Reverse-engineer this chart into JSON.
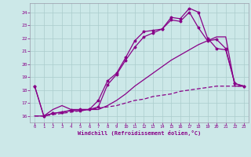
{
  "xlabel": "Windchill (Refroidissement éolien,°C)",
  "background_color": "#cce8e8",
  "grid_color": "#aacccc",
  "line_color": "#880088",
  "xlim": [
    -0.5,
    23.5
  ],
  "ylim": [
    15.5,
    24.7
  ],
  "yticks": [
    16,
    17,
    18,
    19,
    20,
    21,
    22,
    23,
    24
  ],
  "xticks": [
    0,
    1,
    2,
    3,
    4,
    5,
    6,
    7,
    8,
    9,
    10,
    11,
    12,
    13,
    14,
    15,
    16,
    17,
    18,
    19,
    20,
    21,
    22,
    23
  ],
  "line1_x": [
    0,
    1,
    2,
    3,
    4,
    5,
    6,
    7,
    8,
    9,
    10,
    11,
    12,
    13,
    14,
    15,
    16,
    17,
    18,
    19,
    20,
    21,
    22,
    23
  ],
  "line1_y": [
    18.3,
    16.0,
    16.2,
    16.3,
    16.4,
    16.4,
    16.5,
    17.2,
    18.7,
    19.3,
    20.5,
    21.8,
    22.5,
    22.6,
    22.7,
    23.6,
    23.5,
    24.3,
    24.0,
    22.0,
    21.2,
    21.1,
    18.5,
    18.3
  ],
  "line2_x": [
    0,
    1,
    2,
    3,
    4,
    5,
    6,
    7,
    8,
    9,
    10,
    11,
    12,
    13,
    14,
    15,
    16,
    17,
    18,
    19,
    20,
    21,
    22,
    23
  ],
  "line2_y": [
    18.3,
    16.0,
    16.2,
    16.3,
    16.45,
    16.5,
    16.5,
    16.7,
    18.4,
    19.2,
    20.3,
    21.3,
    22.1,
    22.4,
    22.7,
    23.4,
    23.3,
    24.0,
    22.8,
    21.8,
    21.9,
    21.2,
    18.5,
    18.3
  ],
  "line3_x": [
    0,
    1,
    2,
    3,
    4,
    5,
    6,
    7,
    8,
    9,
    10,
    11,
    12,
    13,
    14,
    15,
    16,
    17,
    18,
    19,
    20,
    21,
    22,
    23
  ],
  "line3_y": [
    16.0,
    16.0,
    16.5,
    16.8,
    16.5,
    16.5,
    16.5,
    16.5,
    16.8,
    17.2,
    17.7,
    18.3,
    18.8,
    19.3,
    19.8,
    20.3,
    20.7,
    21.1,
    21.5,
    21.8,
    22.1,
    22.1,
    18.3,
    18.3
  ],
  "line4_x": [
    0,
    1,
    2,
    3,
    4,
    5,
    6,
    7,
    8,
    9,
    10,
    11,
    12,
    13,
    14,
    15,
    16,
    17,
    18,
    19,
    20,
    21,
    22,
    23
  ],
  "line4_y": [
    16.0,
    16.0,
    16.1,
    16.2,
    16.3,
    16.4,
    16.5,
    16.6,
    16.7,
    16.8,
    17.0,
    17.2,
    17.3,
    17.5,
    17.6,
    17.7,
    17.9,
    18.0,
    18.1,
    18.2,
    18.3,
    18.3,
    18.3,
    18.3
  ]
}
